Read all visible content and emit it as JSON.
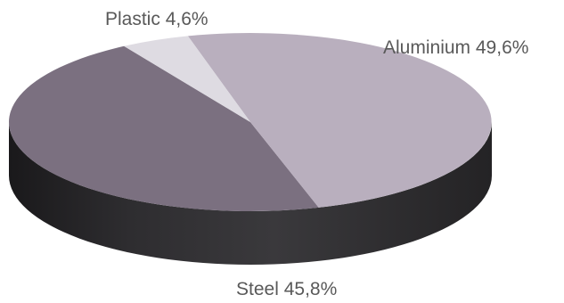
{
  "chart_data": {
    "type": "pie",
    "style": "3d",
    "slices": [
      {
        "label": "Aluminium",
        "value": 49.6,
        "value_label": "49,6%",
        "color": "#b9afbe"
      },
      {
        "label": "Steel",
        "value": 45.8,
        "value_label": "45,8%",
        "color": "#7b7080"
      },
      {
        "label": "Plastic",
        "value": 4.6,
        "value_label": "4,6%",
        "color": "#dedbe2"
      }
    ],
    "side_color": "#2b2a2c"
  }
}
